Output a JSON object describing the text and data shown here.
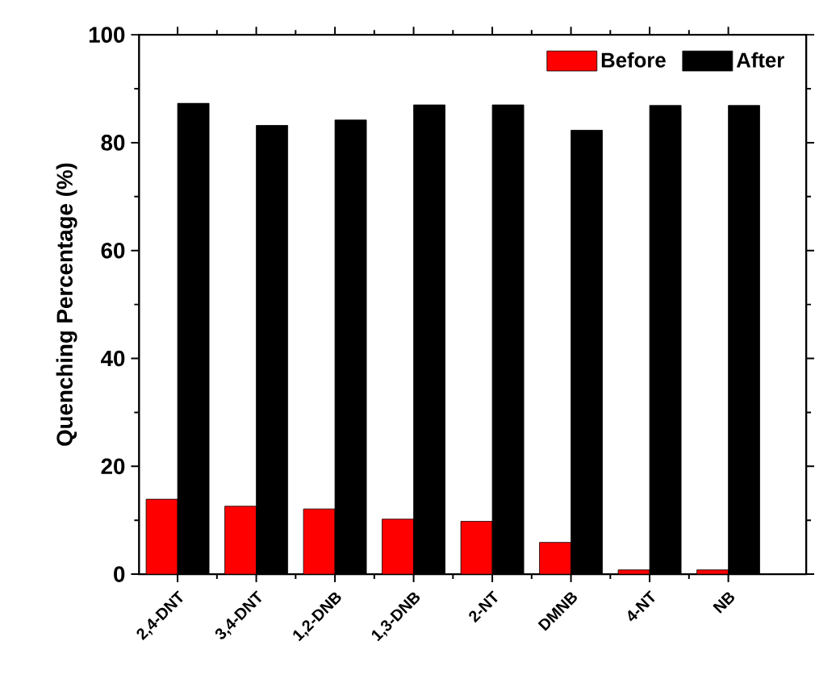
{
  "chart_data": {
    "type": "bar",
    "ylabel": "Quenching Percentage (%)",
    "categories": [
      "2,4-DNT",
      "3,4-DNT",
      "1,2-DNB",
      "1,3-DNB",
      "2-NT",
      "DMNB",
      "4-NT",
      "NB"
    ],
    "series": [
      {
        "name": "Before",
        "color": "#ff0000",
        "values": [
          13.9,
          12.6,
          12.1,
          10.2,
          9.8,
          5.9,
          0.8,
          0.8
        ]
      },
      {
        "name": "After",
        "color": "#000000",
        "values": [
          87.3,
          83.2,
          84.2,
          87.0,
          87.0,
          82.3,
          86.9,
          86.9
        ]
      }
    ],
    "ylim": [
      0,
      100
    ],
    "yticks": [
      0,
      20,
      40,
      60,
      80,
      100
    ],
    "grid": false,
    "legend": "top right"
  }
}
